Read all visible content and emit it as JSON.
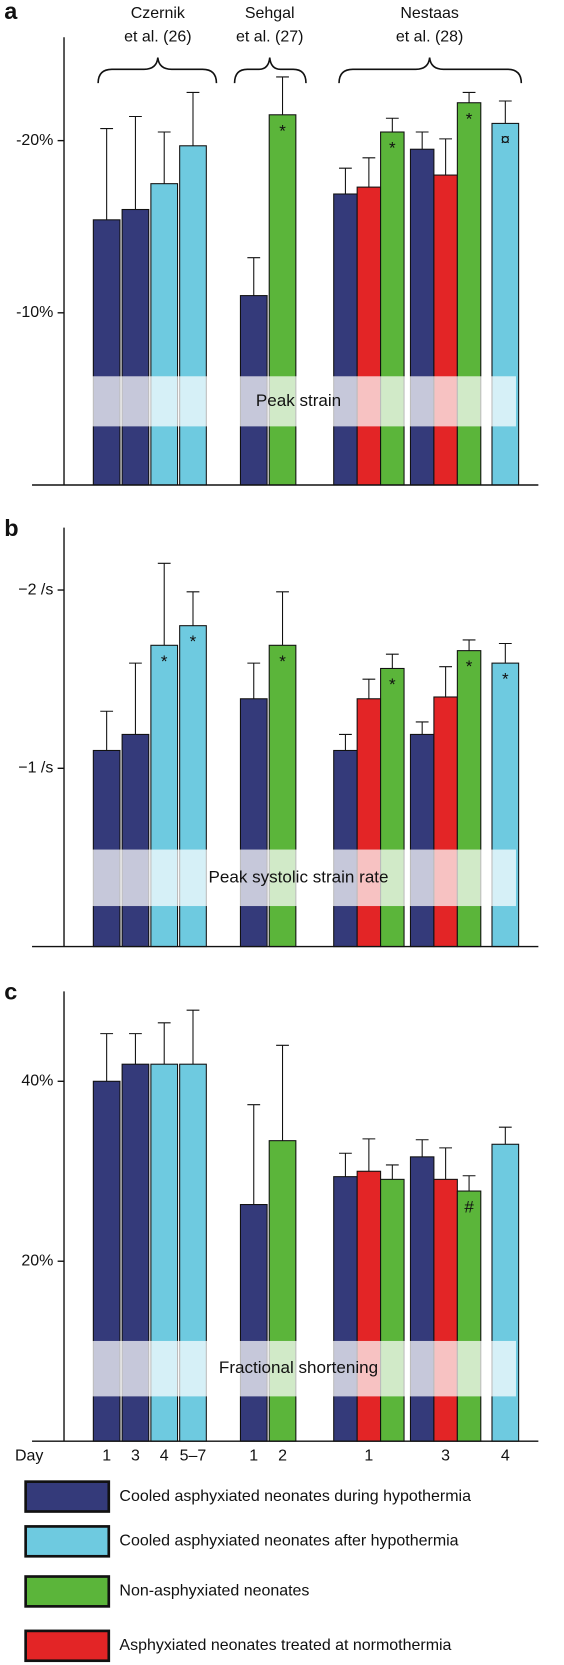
{
  "studies": [
    {
      "label_lines": [
        "Czernik",
        "et al. (26)"
      ]
    },
    {
      "label_lines": [
        "Sehgal",
        "et al. (27)"
      ]
    },
    {
      "label_lines": [
        "Nestaas",
        "et al. (28)"
      ]
    }
  ],
  "day_label": "Day",
  "days": [
    "1",
    "3",
    "4",
    "5–7",
    "1",
    "2",
    "1",
    "3",
    "4"
  ],
  "legend": [
    {
      "name": "Cooled asphyxiated neonates during hypothermia",
      "color": "#343a7a"
    },
    {
      "name": "Cooled asphyxiated neonates after hypothermia",
      "color": "#6ecae0"
    },
    {
      "name": "Non-asphyxiated neonates",
      "color": "#5bb53a"
    },
    {
      "name": "Asphyxiated neonates treated at normothermia",
      "color": "#e32526"
    }
  ],
  "chart_data": [
    {
      "type": "bar",
      "panel_label": "a",
      "title": "Peak strain",
      "ylim": [
        0,
        -26
      ],
      "yticks": [
        {
          "value": -10,
          "label": "-10%"
        },
        {
          "value": -20,
          "label": "-20%"
        }
      ],
      "groups": [
        {
          "bars": [
            {
              "color": "#343a7a",
              "value": -15.4,
              "error": 5.3
            }
          ]
        },
        {
          "bars": [
            {
              "color": "#343a7a",
              "value": -16.0,
              "error": 5.4
            }
          ]
        },
        {
          "bars": [
            {
              "color": "#6ecae0",
              "value": -17.5,
              "error": 3.0
            }
          ]
        },
        {
          "bars": [
            {
              "color": "#6ecae0",
              "value": -19.7,
              "error": 3.1
            }
          ]
        },
        {
          "bars": [
            {
              "color": "#343a7a",
              "value": -11.0,
              "error": 2.2
            }
          ]
        },
        {
          "bars": [
            {
              "color": "#5bb53a",
              "value": -21.5,
              "error": 2.2,
              "annotation": "*"
            }
          ]
        },
        {
          "bars": [
            {
              "color": "#343a7a",
              "value": -16.9,
              "error": 1.5
            },
            {
              "color": "#e32526",
              "value": -17.3,
              "error": 1.7
            },
            {
              "color": "#5bb53a",
              "value": -20.5,
              "error": 0.8,
              "annotation": "*"
            }
          ]
        },
        {
          "bars": [
            {
              "color": "#343a7a",
              "value": -19.5,
              "error": 1.0
            },
            {
              "color": "#e32526",
              "value": -18.0,
              "error": 2.1
            },
            {
              "color": "#5bb53a",
              "value": -22.2,
              "error": 0.6,
              "annotation": "*"
            }
          ]
        },
        {
          "bars": [
            {
              "color": "#6ecae0",
              "value": -21.0,
              "error": 1.3,
              "annotation": "¤"
            }
          ]
        }
      ]
    },
    {
      "type": "bar",
      "panel_label": "b",
      "title": "Peak systolic strain rate",
      "ylim": [
        0,
        -2.35
      ],
      "yticks": [
        {
          "value": -1,
          "label": "−1 /s"
        },
        {
          "value": -2,
          "label": "−2 /s"
        }
      ],
      "groups": [
        {
          "bars": [
            {
              "color": "#343a7a",
              "value": -1.1,
              "error": 0.22
            }
          ]
        },
        {
          "bars": [
            {
              "color": "#343a7a",
              "value": -1.19,
              "error": 0.4
            }
          ]
        },
        {
          "bars": [
            {
              "color": "#6ecae0",
              "value": -1.69,
              "error": 0.46,
              "annotation": "*"
            }
          ]
        },
        {
          "bars": [
            {
              "color": "#6ecae0",
              "value": -1.8,
              "error": 0.19,
              "annotation": "*"
            }
          ]
        },
        {
          "bars": [
            {
              "color": "#343a7a",
              "value": -1.39,
              "error": 0.2
            }
          ]
        },
        {
          "bars": [
            {
              "color": "#5bb53a",
              "value": -1.69,
              "error": 0.3,
              "annotation": "*"
            }
          ]
        },
        {
          "bars": [
            {
              "color": "#343a7a",
              "value": -1.1,
              "error": 0.09
            },
            {
              "color": "#e32526",
              "value": -1.39,
              "error": 0.11
            },
            {
              "color": "#5bb53a",
              "value": -1.56,
              "error": 0.08,
              "annotation": "*"
            }
          ]
        },
        {
          "bars": [
            {
              "color": "#343a7a",
              "value": -1.19,
              "error": 0.07
            },
            {
              "color": "#e32526",
              "value": -1.4,
              "error": 0.17
            },
            {
              "color": "#5bb53a",
              "value": -1.66,
              "error": 0.06,
              "annotation": "*"
            }
          ]
        },
        {
          "bars": [
            {
              "color": "#6ecae0",
              "value": -1.59,
              "error": 0.11,
              "annotation": "*"
            }
          ]
        }
      ]
    },
    {
      "type": "bar",
      "panel_label": "c",
      "title": "Fractional shortening",
      "ylim": [
        0,
        50
      ],
      "yticks": [
        {
          "value": 20,
          "label": "20%"
        },
        {
          "value": 40,
          "label": "40%"
        }
      ],
      "groups": [
        {
          "bars": [
            {
              "color": "#343a7a",
              "value": 40.0,
              "error": 5.3
            }
          ]
        },
        {
          "bars": [
            {
              "color": "#343a7a",
              "value": 41.9,
              "error": 3.4
            }
          ]
        },
        {
          "bars": [
            {
              "color": "#6ecae0",
              "value": 41.9,
              "error": 4.6
            }
          ]
        },
        {
          "bars": [
            {
              "color": "#6ecae0",
              "value": 41.9,
              "error": 6.0
            }
          ]
        },
        {
          "bars": [
            {
              "color": "#343a7a",
              "value": 26.3,
              "error": 11.1
            }
          ]
        },
        {
          "bars": [
            {
              "color": "#5bb53a",
              "value": 33.4,
              "error": 10.6
            }
          ]
        },
        {
          "bars": [
            {
              "color": "#343a7a",
              "value": 29.4,
              "error": 2.6
            },
            {
              "color": "#e32526",
              "value": 30.0,
              "error": 3.6
            },
            {
              "color": "#5bb53a",
              "value": 29.1,
              "error": 1.6
            }
          ]
        },
        {
          "bars": [
            {
              "color": "#343a7a",
              "value": 31.6,
              "error": 1.9
            },
            {
              "color": "#e32526",
              "value": 29.1,
              "error": 3.5
            },
            {
              "color": "#5bb53a",
              "value": 27.8,
              "error": 1.7,
              "annotation": "#"
            }
          ]
        },
        {
          "bars": [
            {
              "color": "#6ecae0",
              "value": 33.0,
              "error": 1.9
            }
          ]
        }
      ]
    }
  ]
}
